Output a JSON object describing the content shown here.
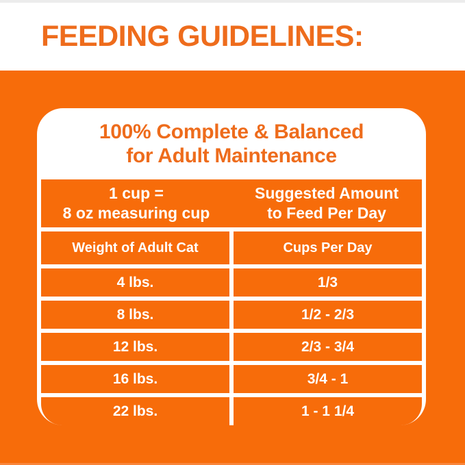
{
  "header": {
    "title": "FEEDING GUIDELINES:"
  },
  "card": {
    "title_line1": "100% Complete & Balanced",
    "title_line2": "for Adult Maintenance",
    "band": {
      "left_line1": "1 cup =",
      "left_line2": "8 oz measuring cup",
      "right_line1": "Suggested Amount",
      "right_line2": "to Feed Per Day"
    },
    "table": {
      "columns": [
        "Weight of Adult Cat",
        "Cups Per Day"
      ],
      "rows": [
        {
          "weight": "4 lbs.",
          "cups": "1/3"
        },
        {
          "weight": "8 lbs.",
          "cups": "1/2 - 2/3"
        },
        {
          "weight": "12 lbs.",
          "cups": "2/3 - 3/4"
        },
        {
          "weight": "16 lbs.",
          "cups": "3/4 - 1"
        },
        {
          "weight": "22 lbs.",
          "cups": "1 - 1 1/4"
        }
      ]
    }
  },
  "colors": {
    "orange_background": "#f76c0a",
    "orange_heading_text": "#ee6c1c",
    "table_text": "#ffffff",
    "panel_background": "#ffffff"
  }
}
